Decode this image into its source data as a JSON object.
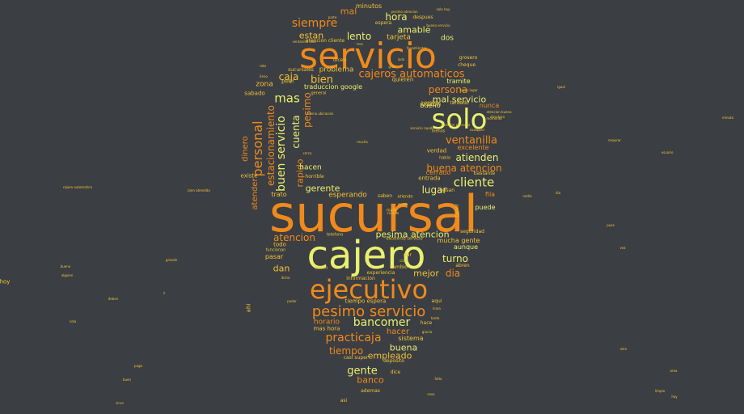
{
  "palette": {
    "background": "#3b3e42",
    "yellow": "#e9f06f",
    "orange": "#f08a1c",
    "gold": "#f2c33a",
    "amber": "#f5a623"
  },
  "words": [
    {
      "text": "sucursal",
      "color": "orange"
    },
    {
      "text": "cajero",
      "color": "yellow"
    },
    {
      "text": "servicio",
      "color": "orange"
    },
    {
      "text": "ejecutivo",
      "color": "orange"
    },
    {
      "text": "solo",
      "color": "yellow"
    },
    {
      "text": "pesimo servicio",
      "color": "orange"
    },
    {
      "text": "cajeros automaticos",
      "color": "orange"
    },
    {
      "text": "cliente",
      "color": "yellow"
    },
    {
      "text": "ventanilla",
      "color": "orange"
    },
    {
      "text": "persona",
      "color": "orange"
    },
    {
      "text": "bancomer",
      "color": "yellow"
    },
    {
      "text": "practicaja",
      "color": "orange"
    },
    {
      "text": "siempre",
      "color": "orange"
    },
    {
      "text": "bien",
      "color": "gold"
    },
    {
      "text": "caja",
      "color": "gold"
    },
    {
      "text": "mas",
      "color": "yellow"
    },
    {
      "text": "hora",
      "color": "yellow"
    },
    {
      "text": "lento",
      "color": "yellow"
    },
    {
      "text": "estan",
      "color": "gold"
    },
    {
      "text": "mal",
      "color": "orange"
    },
    {
      "text": "amable",
      "color": "yellow"
    },
    {
      "text": "tiempo",
      "color": "orange"
    },
    {
      "text": "turno",
      "color": "yellow"
    },
    {
      "text": "dia",
      "color": "orange"
    },
    {
      "text": "gente",
      "color": "yellow"
    },
    {
      "text": "banco",
      "color": "orange"
    },
    {
      "text": "buena",
      "color": "yellow"
    },
    {
      "text": "empleado",
      "color": "gold"
    },
    {
      "text": "atencion",
      "color": "orange"
    },
    {
      "text": "lugar",
      "color": "yellow"
    },
    {
      "text": "atienden",
      "color": "yellow"
    },
    {
      "text": "buena atencion",
      "color": "orange"
    },
    {
      "text": "mal servicio",
      "color": "yellow"
    },
    {
      "text": "gerente",
      "color": "yellow"
    },
    {
      "text": "dan",
      "color": "gold"
    },
    {
      "text": "mejor",
      "color": "gold"
    },
    {
      "text": "hacer",
      "color": "orange"
    },
    {
      "text": "horario",
      "color": "orange"
    },
    {
      "text": "pesima atencion",
      "color": "yellow"
    },
    {
      "text": "problema",
      "color": "gold"
    },
    {
      "text": "dinero",
      "color": "orange"
    },
    {
      "text": "personal",
      "color": "orange"
    },
    {
      "text": "buen servicio",
      "color": "yellow"
    },
    {
      "text": "estacionamiento",
      "color": "orange"
    },
    {
      "text": "cuenta",
      "color": "yellow"
    },
    {
      "text": "pesimo",
      "color": "orange"
    },
    {
      "text": "rapido",
      "color": "orange"
    },
    {
      "text": "atender",
      "color": "orange"
    },
    {
      "text": "esperando",
      "color": "gold"
    },
    {
      "text": "zona",
      "color": "gold"
    },
    {
      "text": "tarjeta",
      "color": "gold"
    },
    {
      "text": "minutos",
      "color": "gold"
    },
    {
      "text": "dos",
      "color": "yellow"
    },
    {
      "text": "hacen",
      "color": "yellow"
    },
    {
      "text": "buzon",
      "color": "gold"
    },
    {
      "text": "fila",
      "color": "orange"
    },
    {
      "text": "puede",
      "color": "yellow"
    },
    {
      "text": "cerrado",
      "color": "orange"
    },
    {
      "text": "excelente",
      "color": "orange"
    },
    {
      "text": "nunca",
      "color": "orange"
    },
    {
      "text": "buено",
      "color": "yellow"
    },
    {
      "text": "tramite",
      "color": "yellow"
    },
    {
      "text": "quieren",
      "color": "gold"
    },
    {
      "text": "traduccion google",
      "color": "yellow"
    },
    {
      "text": "sabado",
      "color": "gold"
    },
    {
      "text": "mucha gente",
      "color": "gold"
    },
    {
      "text": "aunque",
      "color": "yellow"
    },
    {
      "text": "sistema",
      "color": "gold"
    },
    {
      "text": "mas hora",
      "color": "gold"
    },
    {
      "text": "entrada",
      "color": "gold"
    },
    {
      "text": "verdad",
      "color": "gold"
    },
    {
      "text": "pasar",
      "color": "gold"
    },
    {
      "text": "todo",
      "color": "gold"
    },
    {
      "text": "trato",
      "color": "gold"
    },
    {
      "text": "existe",
      "color": "gold"
    },
    {
      "text": "horrible",
      "color": "gold"
    },
    {
      "text": "tiempo espera",
      "color": "gold"
    },
    {
      "text": "informacion",
      "color": "gold"
    },
    {
      "text": "experiencia",
      "color": "gold"
    },
    {
      "text": "cambio",
      "color": "gold"
    },
    {
      "text": "despues",
      "color": "gold"
    },
    {
      "text": "espera",
      "color": "gold"
    },
    {
      "text": "atencion cliente",
      "color": "gold"
    },
    {
      "text": "sucursales",
      "color": "gold"
    },
    {
      "text": "dicen",
      "color": "gold"
    },
    {
      "text": "peor",
      "color": "gold"
    },
    {
      "text": "saben",
      "color": "gold"
    },
    {
      "text": "deposito",
      "color": "gold"
    },
    {
      "text": "casi super",
      "color": "gold"
    },
    {
      "text": "dice",
      "color": "gold"
    },
    {
      "text": "ademas",
      "color": "gold"
    },
    {
      "text": "asi",
      "color": "gold"
    },
    {
      "text": "aqui",
      "color": "gold"
    },
    {
      "text": "hace",
      "color": "gold"
    },
    {
      "text": "abren",
      "color": "gold"
    },
    {
      "text": "seguridad",
      "color": "gold"
    },
    {
      "text": "tardado",
      "color": "gold"
    },
    {
      "text": "bastante",
      "color": "gold"
    },
    {
      "text": "pesima",
      "color": "gold"
    },
    {
      "text": "cheque",
      "color": "gold"
    },
    {
      "text": "grosero",
      "color": "gold"
    },
    {
      "text": "general",
      "color": "gold"
    },
    {
      "text": "funcionan",
      "color": "gold"
    },
    {
      "text": "habia",
      "color": "gold"
    },
    {
      "text": "dar",
      "color": "gold"
    },
    {
      "text": "menos",
      "color": "gold"
    },
    {
      "text": "hoy",
      "color": "gold"
    },
    {
      "text": "ahi",
      "color": "gold"
    },
    {
      "text": "tener",
      "color": "gold"
    },
    {
      "text": "excelente servicio",
      "color": "gold"
    },
    {
      "text": "atiende",
      "color": "gold"
    },
    {
      "text": "malo",
      "color": "gold"
    },
    {
      "text": "telefono",
      "color": "gold"
    },
    {
      "text": "pasan",
      "color": "gold"
    },
    {
      "text": "atento",
      "color": "gold"
    },
    {
      "text": "gracia",
      "color": "gold"
    },
    {
      "text": "claro",
      "color": "gold"
    },
    {
      "text": "dicho",
      "color": "gold"
    },
    {
      "text": "ayuda",
      "color": "gold"
    },
    {
      "text": "cuando",
      "color": "gold"
    },
    {
      "text": "poder",
      "color": "gold"
    },
    {
      "text": "bueno",
      "color": "gold"
    },
    {
      "text": "linea",
      "color": "gold"
    },
    {
      "text": "tarde",
      "color": "gold"
    },
    {
      "text": "cola",
      "color": "gold"
    },
    {
      "text": "otro",
      "color": "gold"
    },
    {
      "text": "area",
      "color": "gold"
    },
    {
      "text": "pago",
      "color": "gold"
    },
    {
      "text": "falta",
      "color": "gold"
    },
    {
      "text": "cosa",
      "color": "gold"
    },
    {
      "text": "bien atendido",
      "color": "gold"
    },
    {
      "text": "buen lugar",
      "color": "gold"
    },
    {
      "text": "servicio rapido",
      "color": "gold"
    },
    {
      "text": "cualquier",
      "color": "gold"
    },
    {
      "text": "momento",
      "color": "gold"
    },
    {
      "text": "directora",
      "color": "gold"
    },
    {
      "text": "atencion buena",
      "color": "gold"
    },
    {
      "text": "atencion personal",
      "color": "gold"
    },
    {
      "text": "pesimo atencion",
      "color": "gold"
    },
    {
      "text": "favor",
      "color": "gold"
    },
    {
      "text": "lleno",
      "color": "gold"
    },
    {
      "text": "rato",
      "color": "gold"
    },
    {
      "text": "mejorar",
      "color": "gold"
    },
    {
      "text": "minuto",
      "color": "gold"
    },
    {
      "text": "igual",
      "color": "gold"
    },
    {
      "text": "usuario",
      "color": "gold"
    },
    {
      "text": "nadie",
      "color": "gold"
    },
    {
      "text": "dia",
      "color": "gold"
    },
    {
      "text": "vez",
      "color": "gold"
    },
    {
      "text": "pues",
      "color": "gold"
    },
    {
      "text": "cajero automatico",
      "color": "gold"
    },
    {
      "text": "alguien",
      "color": "gold"
    },
    {
      "text": "deben",
      "color": "gold"
    },
    {
      "text": "ir",
      "color": "gold"
    },
    {
      "text": "grande",
      "color": "gold"
    },
    {
      "text": "buen",
      "color": "gold"
    },
    {
      "text": "sirve",
      "color": "gold"
    },
    {
      "text": "limpio",
      "color": "gold"
    },
    {
      "text": "hay",
      "color": "gold"
    },
    {
      "text": "gran",
      "color": "gold"
    },
    {
      "text": "lado",
      "color": "gold"
    },
    {
      "text": "tres",
      "color": "gold"
    },
    {
      "text": "parte",
      "color": "gold"
    },
    {
      "text": "solo hay",
      "color": "gold"
    },
    {
      "text": "bueno servicio",
      "color": "gold"
    },
    {
      "text": "ventanilla solo",
      "color": "gold"
    },
    {
      "text": "buena ubicacion",
      "color": "gold"
    },
    {
      "text": "cerca",
      "color": "gold"
    },
    {
      "text": "mucho",
      "color": "gold"
    },
    {
      "text": "clientes",
      "color": "gold"
    },
    {
      "text": "abierto",
      "color": "gold"
    },
    {
      "text": "solo atienden",
      "color": "gold"
    },
    {
      "text": "buen trato",
      "color": "gold"
    },
    {
      "text": "mal atendido",
      "color": "gold"
    }
  ]
}
